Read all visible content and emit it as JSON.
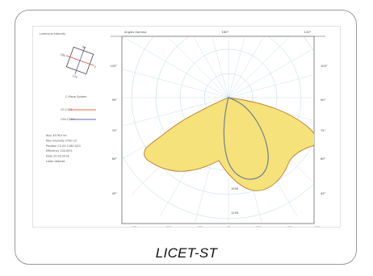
{
  "caption": "LICET-ST",
  "header_text": "Luminous Intensity",
  "legend_text": "C-Plane System",
  "legend": [
    {
      "plane": "C0-C180",
      "color": "#e06a4a"
    },
    {
      "plane": "C90-C270",
      "color": "#6a6ab0"
    }
  ],
  "info_lines": [
    "Φ(v) 4576.0 lm",
    "Max Intensity 2750 cd",
    "Position C0 G0 C180 G20",
    "Efficiency 100.00%",
    "Date 20.03.2018",
    "Lamp dataset"
  ],
  "polar": {
    "title": "Angles Gamma",
    "top_angles": [
      "180°",
      "120°"
    ],
    "side_angles": [
      "105°",
      "90°",
      "75°",
      "60°",
      "45°"
    ],
    "bottom_angles": [
      "90°",
      "60°",
      "30°",
      "0°",
      "30°",
      "60°",
      "90°"
    ],
    "radial_labels": [
      "250",
      "500",
      "750",
      "1000",
      "1250"
    ]
  },
  "colors": {
    "fill": "#f5e27a",
    "fill_stroke": "#c07a2a",
    "curve2": "#707e96",
    "grid": "#bcd8e2"
  }
}
